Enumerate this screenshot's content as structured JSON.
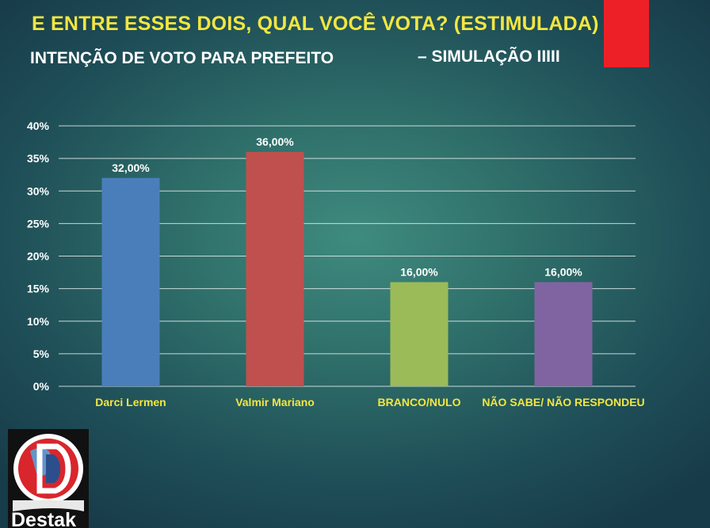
{
  "header": {
    "title": "E ENTRE ESSES DOIS, QUAL VOCÊ VOTA? (ESTIMULADA)",
    "subtitle": "INTENÇÃO DE VOTO PARA PREFEITO",
    "subtitle_suffix": "– SIMULAÇÃO IIIII"
  },
  "logo": {
    "text": "Destak"
  },
  "colors": {
    "title": "#f2e640",
    "accent_block": "#ee2027",
    "category_label": "#f2e640",
    "axis_text": "#ffffff"
  },
  "chart_data": {
    "type": "bar",
    "categories": [
      "Darci Lermen",
      "Valmir Mariano",
      "BRANCO/NULO",
      "NÃO SABE/ NÃO RESPONDEU"
    ],
    "values": [
      32,
      36,
      16,
      16
    ],
    "data_labels": [
      "32,00%",
      "36,00%",
      "16,00%",
      "16,00%"
    ],
    "bar_colors": [
      "#4a7ebb",
      "#c0504d",
      "#9bbb59",
      "#8064a2"
    ],
    "ylim": [
      0,
      40
    ],
    "yticks": [
      0,
      5,
      10,
      15,
      20,
      25,
      30,
      35,
      40
    ],
    "ytick_labels": [
      "0%",
      "5%",
      "10%",
      "15%",
      "20%",
      "25%",
      "30%",
      "35%",
      "40%"
    ],
    "grid": true,
    "legend": "none"
  }
}
